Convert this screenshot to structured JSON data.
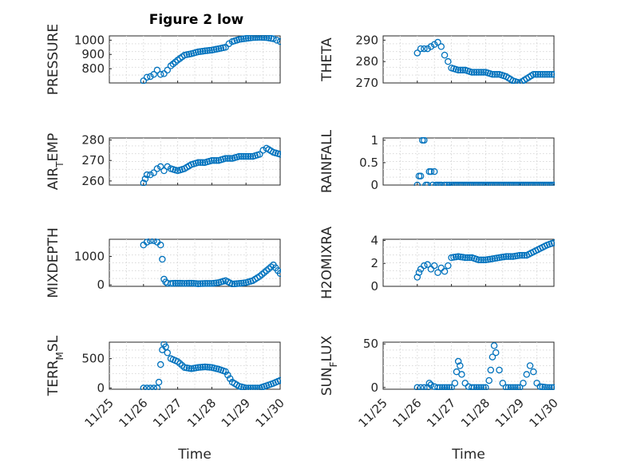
{
  "figure": {
    "title": "Figure 2 low"
  },
  "chart_data": [
    {
      "id": "pressure",
      "type": "scatter",
      "ylabel_parts": [
        {
          "t": "PRESSURE"
        }
      ],
      "xlabel": "",
      "ylim": [
        700,
        1030
      ],
      "yticks": [
        800,
        900,
        1000
      ],
      "xlim": [
        0,
        5
      ],
      "xtick_labels": [],
      "series": [
        {
          "x": [
            1.0,
            1.1,
            1.2,
            1.3,
            1.4,
            1.5,
            1.6,
            1.7,
            1.8,
            2.0,
            2.2,
            2.4,
            2.6,
            2.8,
            3.0,
            3.2,
            3.4,
            3.5,
            3.6,
            3.8,
            4.0,
            4.2,
            4.4,
            4.6,
            4.8,
            4.9,
            5.0
          ],
          "y": [
            715,
            740,
            745,
            760,
            790,
            760,
            765,
            790,
            820,
            860,
            895,
            905,
            918,
            925,
            930,
            940,
            950,
            975,
            990,
            1005,
            1012,
            1018,
            1020,
            1018,
            1010,
            1000,
            990
          ]
        }
      ]
    },
    {
      "id": "theta",
      "type": "scatter",
      "ylabel_parts": [
        {
          "t": "THETA"
        }
      ],
      "xlabel": "",
      "ylim": [
        270,
        292
      ],
      "yticks": [
        270,
        280,
        290
      ],
      "xlim": [
        0,
        5
      ],
      "xtick_labels": [],
      "series": [
        {
          "x": [
            1.0,
            1.1,
            1.2,
            1.3,
            1.4,
            1.5,
            1.6,
            1.7,
            1.8,
            1.9,
            2.0,
            2.2,
            2.4,
            2.6,
            2.8,
            3.0,
            3.2,
            3.4,
            3.6,
            3.8,
            4.0,
            4.2,
            4.4,
            4.6,
            4.8,
            5.0
          ],
          "y": [
            284,
            286,
            286,
            286,
            287,
            288,
            289,
            287,
            283,
            280,
            277,
            276,
            276,
            275,
            275,
            275,
            274,
            274,
            273,
            271,
            270,
            272,
            274,
            274,
            274,
            274
          ]
        }
      ]
    },
    {
      "id": "air_temp",
      "type": "scatter",
      "ylabel_parts": [
        {
          "t": "AIR"
        },
        {
          "t": "T",
          "sub": true
        },
        {
          "t": "EMP"
        }
      ],
      "xlabel": "",
      "ylim": [
        258,
        281
      ],
      "yticks": [
        260,
        270,
        280
      ],
      "xlim": [
        0,
        5
      ],
      "xtick_labels": [],
      "series": [
        {
          "x": [
            1.0,
            1.05,
            1.1,
            1.2,
            1.3,
            1.4,
            1.5,
            1.6,
            1.7,
            1.8,
            2.0,
            2.2,
            2.4,
            2.6,
            2.8,
            3.0,
            3.2,
            3.4,
            3.6,
            3.8,
            4.0,
            4.2,
            4.4,
            4.5,
            4.6,
            4.8,
            5.0
          ],
          "y": [
            259,
            261,
            263,
            263,
            264,
            266,
            267,
            265,
            267,
            266,
            265,
            266,
            268,
            269,
            269,
            270,
            270,
            271,
            271,
            272,
            272,
            272,
            273,
            275,
            276,
            274,
            273
          ]
        }
      ]
    },
    {
      "id": "rainfall",
      "type": "scatter",
      "ylabel_parts": [
        {
          "t": "RAINFALL"
        }
      ],
      "xlabel": "",
      "ylim": [
        0,
        1.05
      ],
      "yticks": [
        0,
        0.5,
        1
      ],
      "xlim": [
        0,
        5
      ],
      "xtick_labels": [],
      "series": [
        {
          "x": [
            1.0,
            1.05,
            1.1,
            1.15,
            1.2,
            1.25,
            1.3,
            1.35,
            1.4,
            1.45,
            1.5,
            1.55,
            1.6,
            1.65,
            1.7,
            1.8,
            2.0,
            2.5,
            3.0,
            3.5,
            4.0,
            4.5,
            5.0
          ],
          "y": [
            0,
            0.2,
            0.2,
            1,
            1,
            0,
            0,
            0.3,
            0.3,
            0,
            0.3,
            0,
            0,
            0,
            0,
            0,
            0,
            0,
            0,
            0,
            0,
            0,
            0
          ]
        }
      ]
    },
    {
      "id": "mixdepth",
      "type": "scatter",
      "ylabel_parts": [
        {
          "t": "MIXDEPTH"
        }
      ],
      "xlabel": "",
      "ylim": [
        -50,
        1600
      ],
      "yticks": [
        0,
        1000
      ],
      "xlim": [
        0,
        5
      ],
      "xtick_labels": [],
      "series": [
        {
          "x": [
            1.0,
            1.1,
            1.2,
            1.3,
            1.4,
            1.5,
            1.55,
            1.6,
            1.65,
            1.7,
            1.8,
            2.0,
            2.2,
            2.4,
            2.6,
            2.8,
            3.0,
            3.2,
            3.4,
            3.6,
            3.8,
            4.0,
            4.2,
            4.4,
            4.6,
            4.8,
            5.0
          ],
          "y": [
            1400,
            1500,
            1550,
            1550,
            1500,
            1400,
            900,
            200,
            100,
            60,
            50,
            60,
            50,
            60,
            40,
            50,
            50,
            80,
            150,
            30,
            50,
            80,
            150,
            300,
            500,
            700,
            400
          ]
        }
      ]
    },
    {
      "id": "h2omixra",
      "type": "scatter",
      "ylabel_parts": [
        {
          "t": "H2OMIXRA"
        }
      ],
      "xlabel": "",
      "ylim": [
        0,
        4.1
      ],
      "yticks": [
        0,
        2,
        4
      ],
      "xlim": [
        0,
        5
      ],
      "xtick_labels": [],
      "series": [
        {
          "x": [
            1.0,
            1.05,
            1.1,
            1.2,
            1.3,
            1.4,
            1.5,
            1.6,
            1.7,
            1.8,
            1.9,
            2.0,
            2.2,
            2.4,
            2.6,
            2.8,
            3.0,
            3.2,
            3.4,
            3.6,
            3.8,
            4.0,
            4.2,
            4.4,
            4.6,
            4.8,
            5.0
          ],
          "y": [
            0.8,
            1.2,
            1.5,
            1.8,
            1.9,
            1.5,
            1.8,
            1.2,
            1.6,
            1.3,
            1.8,
            2.5,
            2.6,
            2.5,
            2.5,
            2.3,
            2.3,
            2.4,
            2.5,
            2.6,
            2.6,
            2.7,
            2.7,
            3,
            3.3,
            3.6,
            3.8
          ]
        }
      ]
    },
    {
      "id": "terr_msl",
      "type": "scatter",
      "ylabel_parts": [
        {
          "t": "TERR"
        },
        {
          "t": "M",
          "sub": true
        },
        {
          "t": "SL"
        }
      ],
      "xlabel": "Time",
      "ylim": [
        -20,
        780
      ],
      "yticks": [
        0,
        500
      ],
      "xlim": [
        0,
        5
      ],
      "xtick_labels": [
        "11/25",
        "11/26",
        "11/27",
        "11/28",
        "11/29",
        "11/30"
      ],
      "series": [
        {
          "x": [
            1.0,
            1.1,
            1.2,
            1.3,
            1.4,
            1.45,
            1.5,
            1.55,
            1.6,
            1.65,
            1.7,
            1.8,
            2.0,
            2.2,
            2.4,
            2.6,
            2.8,
            3.0,
            3.2,
            3.4,
            3.6,
            3.8,
            4.0,
            4.2,
            4.4,
            4.6,
            4.8,
            5.0
          ],
          "y": [
            0,
            0,
            0,
            0,
            0,
            100,
            400,
            650,
            750,
            700,
            600,
            500,
            450,
            350,
            330,
            350,
            360,
            350,
            320,
            280,
            100,
            30,
            0,
            0,
            0,
            40,
            80,
            130
          ]
        }
      ]
    },
    {
      "id": "sun_flux",
      "type": "scatter",
      "ylabel_parts": [
        {
          "t": "SUN"
        },
        {
          "t": "F",
          "sub": true
        },
        {
          "t": "LUX"
        }
      ],
      "xlabel": "Time",
      "ylim": [
        -2,
        52
      ],
      "yticks": [
        0,
        50
      ],
      "xlim": [
        0,
        5
      ],
      "xtick_labels": [
        "11/25",
        "11/26",
        "11/27",
        "11/28",
        "11/29",
        "11/30"
      ],
      "series": [
        {
          "x": [
            1.0,
            1.1,
            1.2,
            1.3,
            1.35,
            1.4,
            1.5,
            1.6,
            1.8,
            2.0,
            2.1,
            2.15,
            2.2,
            2.25,
            2.3,
            2.4,
            2.5,
            2.6,
            2.8,
            3.0,
            3.1,
            3.15,
            3.2,
            3.25,
            3.3,
            3.4,
            3.5,
            3.6,
            3.8,
            4.0,
            4.1,
            4.2,
            4.3,
            4.4,
            4.5,
            4.6,
            4.8,
            5.0
          ],
          "y": [
            0,
            0,
            0,
            0,
            5,
            3,
            1,
            0,
            0,
            0,
            5,
            18,
            30,
            25,
            15,
            5,
            1,
            0,
            0,
            0,
            8,
            20,
            35,
            48,
            40,
            20,
            5,
            0,
            0,
            0,
            5,
            15,
            25,
            18,
            5,
            1,
            0,
            0
          ]
        }
      ]
    }
  ]
}
